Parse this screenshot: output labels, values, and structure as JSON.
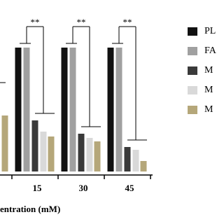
{
  "chart_data": {
    "type": "bar",
    "categories": [
      null,
      "15",
      "30",
      "45"
    ],
    "xlabel": "entration (mM)",
    "ylim": [
      0,
      100
    ],
    "series": [
      {
        "name": "PL",
        "color": "#111111",
        "values": [
          null,
          88.5,
          88.5,
          88.5
        ]
      },
      {
        "name": "FA",
        "color": "#a0a0a0",
        "values": [
          null,
          88.5,
          88.5,
          88.5
        ]
      },
      {
        "name": "M",
        "color": "#3a3a3a",
        "values": [
          null,
          36.5,
          27,
          17.5
        ]
      },
      {
        "name": "M",
        "color": "#d9d9d9",
        "values": [
          null,
          28.5,
          24,
          15.5
        ]
      },
      {
        "name": "M",
        "color": "#b5a77a",
        "values": [
          40,
          25,
          21.5,
          7.5
        ]
      }
    ],
    "annotations": [
      "**",
      "**",
      "**"
    ]
  }
}
